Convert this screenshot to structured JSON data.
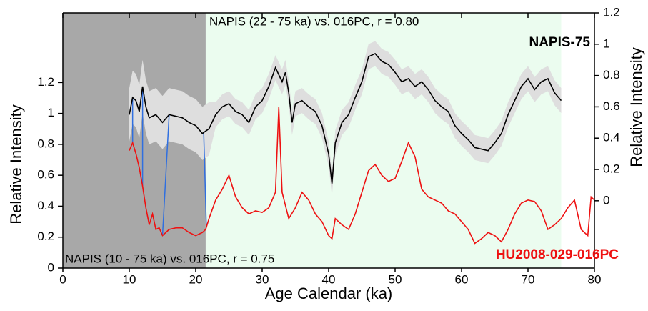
{
  "chart_data": {
    "type": "line",
    "annotations": [
      "NAPIS (22 - 75 ka) vs. 016PC, r = 0.80",
      "NAPIS (10 - 75 ka) vs. 016PC, r = 0.75"
    ],
    "xlabel": "Age Calendar (ka)",
    "ylabel": "Relative Intensity",
    "y2label": "Relative Intensity",
    "xlim": [
      0,
      80
    ],
    "xticks": [
      0,
      10,
      20,
      30,
      40,
      50,
      60,
      70,
      80
    ],
    "ylim": [
      0,
      1.65
    ],
    "yticks": [
      0,
      0.2,
      0.4,
      0.6,
      0.8,
      1,
      1.2
    ],
    "y2lim": [
      -0.43,
      1.2
    ],
    "y2ticks": [
      0,
      0.2,
      0.4,
      0.6,
      0.8,
      1,
      1.2
    ],
    "shaded_regions": [
      {
        "xlim": [
          0,
          21.5
        ],
        "color": "#a8a8a8"
      },
      {
        "xlim": [
          21.5,
          75
        ],
        "color": "#ebfcef"
      }
    ],
    "tie_points": [
      [
        10.5,
        10.5
      ],
      [
        12,
        12
      ],
      [
        16,
        15
      ],
      [
        21.2,
        21.6
      ]
    ],
    "tie_color": "#2f6fe0",
    "series": [
      {
        "name": "NAPIS-75",
        "color": "#000000",
        "axis": "y2",
        "band_color": "#dedede",
        "x": [
          10,
          10.5,
          11,
          11.5,
          12,
          12.5,
          13,
          14,
          15,
          16,
          17,
          18,
          19,
          20,
          21,
          22,
          23,
          24,
          25,
          26,
          27,
          28,
          29,
          30,
          31,
          32,
          33,
          33.5,
          34,
          34.5,
          35,
          36,
          37,
          38,
          39,
          40,
          40.5,
          41,
          42,
          43,
          44,
          45,
          46,
          47,
          48,
          49,
          50,
          51,
          52,
          53,
          54,
          55,
          56,
          57,
          58,
          59,
          60,
          61,
          62,
          63,
          64,
          65,
          66,
          67,
          68,
          69,
          70,
          71,
          72,
          73,
          74,
          75
        ],
        "values": [
          0.55,
          0.66,
          0.64,
          0.57,
          0.73,
          0.6,
          0.53,
          0.55,
          0.5,
          0.55,
          0.54,
          0.53,
          0.5,
          0.48,
          0.43,
          0.46,
          0.55,
          0.6,
          0.62,
          0.57,
          0.55,
          0.5,
          0.6,
          0.64,
          0.73,
          0.85,
          0.76,
          0.82,
          0.69,
          0.5,
          0.62,
          0.64,
          0.6,
          0.57,
          0.48,
          0.3,
          0.11,
          0.37,
          0.5,
          0.55,
          0.66,
          0.76,
          0.92,
          0.94,
          0.89,
          0.87,
          0.82,
          0.76,
          0.78,
          0.73,
          0.76,
          0.71,
          0.64,
          0.6,
          0.57,
          0.48,
          0.43,
          0.39,
          0.34,
          0.33,
          0.32,
          0.37,
          0.43,
          0.55,
          0.64,
          0.73,
          0.78,
          0.71,
          0.76,
          0.78,
          0.69,
          0.64
        ],
        "band_upper": [
          0.72,
          0.83,
          0.81,
          0.74,
          0.9,
          0.77,
          0.7,
          0.72,
          0.67,
          0.72,
          0.71,
          0.7,
          0.67,
          0.65,
          0.6,
          0.63,
          0.63,
          0.68,
          0.7,
          0.65,
          0.63,
          0.58,
          0.68,
          0.72,
          0.81,
          0.93,
          0.84,
          0.9,
          0.77,
          0.58,
          0.7,
          0.72,
          0.68,
          0.65,
          0.56,
          0.38,
          0.19,
          0.45,
          0.58,
          0.63,
          0.74,
          0.84,
          1,
          1.02,
          0.97,
          0.95,
          0.9,
          0.84,
          0.86,
          0.81,
          0.84,
          0.79,
          0.72,
          0.68,
          0.65,
          0.56,
          0.51,
          0.47,
          0.42,
          0.41,
          0.4,
          0.45,
          0.51,
          0.63,
          0.72,
          0.81,
          0.86,
          0.79,
          0.84,
          0.86,
          0.77,
          0.72
        ],
        "band_lower": [
          0.38,
          0.49,
          0.47,
          0.4,
          0.56,
          0.43,
          0.36,
          0.38,
          0.33,
          0.38,
          0.37,
          0.36,
          0.33,
          0.31,
          0.26,
          0.29,
          0.47,
          0.52,
          0.54,
          0.49,
          0.47,
          0.42,
          0.52,
          0.56,
          0.65,
          0.77,
          0.68,
          0.74,
          0.61,
          0.42,
          0.54,
          0.56,
          0.52,
          0.49,
          0.4,
          0.22,
          0.03,
          0.29,
          0.42,
          0.47,
          0.58,
          0.68,
          0.84,
          0.86,
          0.81,
          0.79,
          0.74,
          0.68,
          0.7,
          0.65,
          0.68,
          0.63,
          0.56,
          0.52,
          0.49,
          0.4,
          0.35,
          0.31,
          0.26,
          0.25,
          0.24,
          0.29,
          0.35,
          0.47,
          0.56,
          0.65,
          0.7,
          0.63,
          0.68,
          0.7,
          0.61,
          0.56
        ]
      },
      {
        "name": "HU2008-029-016PC",
        "color": "#ee1111",
        "axis": "y",
        "x": [
          10,
          10.5,
          11,
          11.5,
          12,
          12.5,
          13,
          13.5,
          14,
          14.5,
          15,
          16,
          17,
          18,
          19,
          20,
          21,
          21.5,
          22,
          23,
          24,
          25,
          26,
          27,
          28,
          29,
          30,
          31,
          32,
          32.5,
          33,
          34,
          35,
          36,
          37,
          38,
          39,
          40,
          40.5,
          41,
          42,
          43,
          44,
          45,
          46,
          47,
          48,
          49,
          50,
          51,
          52,
          53,
          54,
          55,
          56,
          57,
          58,
          59,
          60,
          61,
          62,
          63,
          64,
          65,
          66,
          67,
          68,
          69,
          70,
          71,
          72,
          73,
          74,
          75,
          76,
          77,
          78,
          79,
          79.5,
          80
        ],
        "values": [
          0.76,
          0.81,
          0.74,
          0.65,
          0.53,
          0.39,
          0.28,
          0.35,
          0.25,
          0.26,
          0.21,
          0.25,
          0.26,
          0.26,
          0.23,
          0.21,
          0.23,
          0.25,
          0.32,
          0.44,
          0.51,
          0.6,
          0.46,
          0.39,
          0.35,
          0.37,
          0.36,
          0.39,
          0.49,
          1.04,
          0.49,
          0.32,
          0.39,
          0.49,
          0.44,
          0.35,
          0.3,
          0.21,
          0.19,
          0.32,
          0.28,
          0.25,
          0.35,
          0.49,
          0.63,
          0.67,
          0.6,
          0.56,
          0.58,
          0.69,
          0.81,
          0.72,
          0.51,
          0.46,
          0.44,
          0.42,
          0.37,
          0.35,
          0.3,
          0.25,
          0.16,
          0.19,
          0.23,
          0.21,
          0.17,
          0.25,
          0.35,
          0.42,
          0.44,
          0.43,
          0.37,
          0.25,
          0.28,
          0.32,
          0.39,
          0.44,
          0.25,
          0.21,
          0.46,
          0.44
        ]
      }
    ]
  }
}
